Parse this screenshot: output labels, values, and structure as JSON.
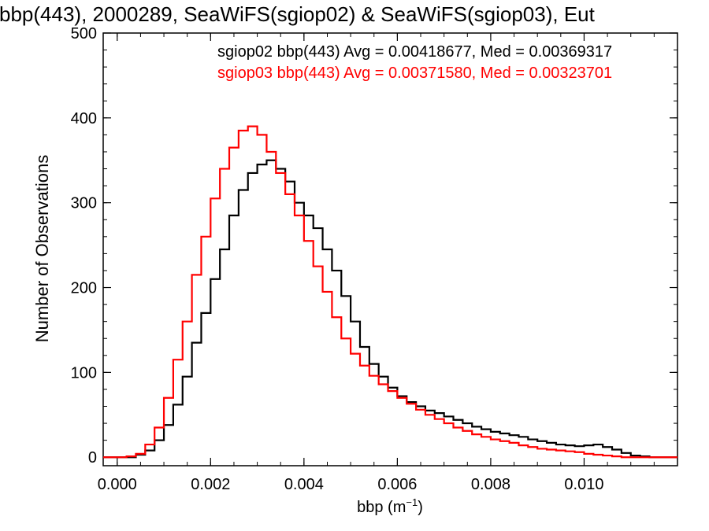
{
  "chart_data": {
    "type": "line",
    "title": "bbp(443), 2000289, SeaWiFS(sgiop02) & SeaWiFS(sgiop03), Eut",
    "xlabel_main": "bbp (m",
    "xlabel_sup": "−1",
    "xlabel_close": ")",
    "ylabel": "Number of Observations",
    "xlim": [
      -0.0003,
      0.012
    ],
    "ylim": [
      -10,
      500
    ],
    "xticks": [
      0.0,
      0.002,
      0.004,
      0.006,
      0.008,
      0.01
    ],
    "xtick_labels": [
      "0.000",
      "0.002",
      "0.004",
      "0.006",
      "0.008",
      "0.010"
    ],
    "yticks": [
      0,
      100,
      200,
      300,
      400,
      500
    ],
    "ytick_labels": [
      "0",
      "100",
      "200",
      "300",
      "400",
      "500"
    ],
    "grid": false,
    "legend_position": "top-right",
    "series": [
      {
        "name": "sgiop02 bbp(443) Avg = 0.00418677, Med = 0.00369317",
        "color": "#000000",
        "x": [
          -0.0003,
          0.0,
          0.0004,
          0.0006,
          0.0008,
          0.001,
          0.0012,
          0.0014,
          0.0016,
          0.0018,
          0.002,
          0.0022,
          0.0024,
          0.0026,
          0.0028,
          0.003,
          0.0032,
          0.0034,
          0.0036,
          0.0038,
          0.004,
          0.0042,
          0.0044,
          0.0046,
          0.0048,
          0.005,
          0.0052,
          0.0054,
          0.0056,
          0.0058,
          0.006,
          0.0062,
          0.0064,
          0.0066,
          0.0068,
          0.007,
          0.0072,
          0.0074,
          0.0076,
          0.0078,
          0.008,
          0.0082,
          0.0084,
          0.0086,
          0.0088,
          0.009,
          0.0092,
          0.0094,
          0.0096,
          0.0098,
          0.01,
          0.0102,
          0.0104,
          0.0106,
          0.0108,
          0.011,
          0.0112,
          0.0114,
          0.0116,
          0.012
        ],
        "y": [
          0,
          0,
          3,
          8,
          20,
          38,
          62,
          95,
          135,
          170,
          210,
          245,
          285,
          315,
          335,
          345,
          350,
          340,
          325,
          300,
          285,
          270,
          245,
          220,
          190,
          160,
          130,
          110,
          95,
          82,
          72,
          65,
          60,
          55,
          52,
          48,
          44,
          40,
          36,
          33,
          30,
          28,
          26,
          24,
          21,
          19,
          17,
          15,
          14,
          13,
          14,
          15,
          12,
          9,
          5,
          2,
          1,
          0,
          0,
          0
        ]
      },
      {
        "name": "sgiop03 bbp(443) Avg = 0.00371580, Med = 0.00323701",
        "color": "#ff0000",
        "x": [
          -0.0003,
          0.0,
          0.0002,
          0.0004,
          0.0006,
          0.0008,
          0.001,
          0.0012,
          0.0014,
          0.0016,
          0.0018,
          0.002,
          0.0022,
          0.0024,
          0.0026,
          0.0028,
          0.003,
          0.0032,
          0.0034,
          0.0036,
          0.0038,
          0.004,
          0.0042,
          0.0044,
          0.0046,
          0.0048,
          0.005,
          0.0052,
          0.0054,
          0.0056,
          0.0058,
          0.006,
          0.0062,
          0.0064,
          0.0066,
          0.0068,
          0.007,
          0.0072,
          0.0074,
          0.0076,
          0.0078,
          0.008,
          0.0082,
          0.0084,
          0.0086,
          0.0088,
          0.009,
          0.0092,
          0.0094,
          0.0096,
          0.0098,
          0.01,
          0.0102,
          0.0104,
          0.0106,
          0.0108,
          0.011,
          0.0112,
          0.0114,
          0.0116,
          0.012
        ],
        "y": [
          0,
          0,
          1,
          4,
          15,
          35,
          70,
          115,
          160,
          215,
          260,
          305,
          340,
          365,
          385,
          390,
          380,
          360,
          335,
          310,
          285,
          255,
          225,
          195,
          165,
          140,
          122,
          108,
          96,
          86,
          78,
          70,
          63,
          56,
          50,
          45,
          40,
          35,
          31,
          27,
          24,
          21,
          19,
          17,
          14,
          12,
          10,
          9,
          8,
          7,
          6,
          4,
          3,
          2,
          1,
          0,
          0,
          0,
          0,
          0,
          0
        ]
      }
    ]
  }
}
